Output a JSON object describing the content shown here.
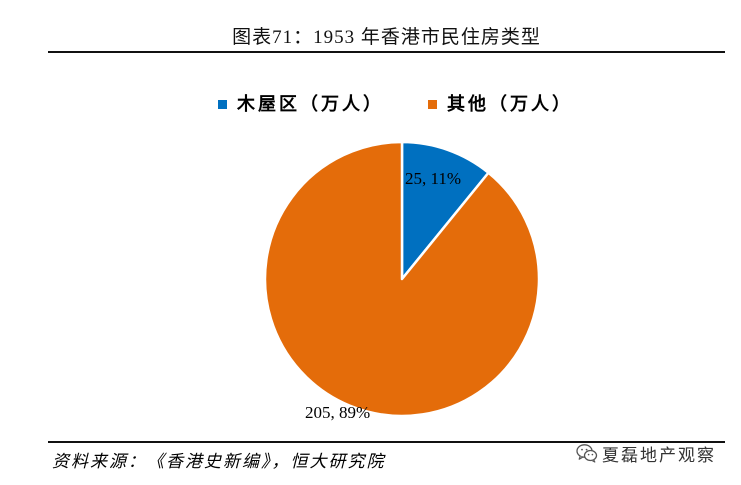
{
  "chart_data": {
    "type": "pie",
    "title": "图表71：1953 年香港市民住房类型",
    "categories": [
      "木屋区（万人）",
      "其他（万人）"
    ],
    "values": [
      25,
      205
    ],
    "data_labels": [
      "25, 11%",
      "205, 89%"
    ],
    "colors": [
      "#0070c0",
      "#e46c0a"
    ],
    "start_angle": "12 o'clock, clockwise",
    "legend_position": "top"
  },
  "footer": {
    "source": "资料来源：《香港史新编》，恒大研究院",
    "watermark": "夏磊地产观察",
    "watermark_icon": "wechat-icon"
  }
}
